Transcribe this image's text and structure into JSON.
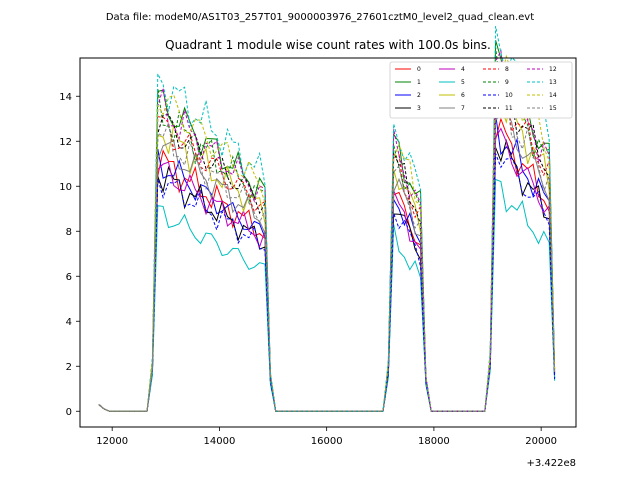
{
  "suptitle": "Data file: modeM0/AS1T03_257T01_9000003976_27601cztM0_level2_quad_clean.evt",
  "chart_data": {
    "type": "line",
    "title": "Quadrant 1 module wise count rates with 100.0s bins.",
    "xlabel": "",
    "ylabel": "",
    "x_offset_label": "+3.422e8",
    "xlim": [
      11400,
      20650
    ],
    "ylim": [
      -0.7,
      15.7
    ],
    "xticks": [
      12000,
      14000,
      16000,
      18000,
      20000
    ],
    "xtick_labels": [
      "12000",
      "14000",
      "16000",
      "18000",
      "20000"
    ],
    "yticks": [
      0,
      2,
      4,
      6,
      8,
      10,
      12,
      14
    ],
    "ytick_labels": [
      "0",
      "2",
      "4",
      "6",
      "8",
      "10",
      "12",
      "14"
    ],
    "legend_position": "top-right",
    "segments": [
      {
        "start": 11750,
        "end": 12650,
        "rate": 0.05
      },
      {
        "start": 12750,
        "end": 14950,
        "rate": 10.0
      },
      {
        "start": 15050,
        "end": 17050,
        "rate": 0.0
      },
      {
        "start": 17150,
        "end": 17850,
        "rate": 9.0
      },
      {
        "start": 17950,
        "end": 18950,
        "rate": 0.0
      },
      {
        "start": 19050,
        "end": 20250,
        "rate": 11.5
      }
    ],
    "series": [
      {
        "name": "0",
        "color": "#ff0000",
        "dash": "solid",
        "level": 0.91
      },
      {
        "name": "1",
        "color": "#008000",
        "dash": "solid",
        "level": 1.12
      },
      {
        "name": "2",
        "color": "#0000ff",
        "dash": "solid",
        "level": 0.9
      },
      {
        "name": "3",
        "color": "#000000",
        "dash": "solid",
        "level": 0.86
      },
      {
        "name": "4",
        "color": "#bf00bf",
        "dash": "solid",
        "level": 0.88
      },
      {
        "name": "5",
        "color": "#00bfbf",
        "dash": "solid",
        "level": 0.72
      },
      {
        "name": "6",
        "color": "#bfbf00",
        "dash": "solid",
        "level": 1.02
      },
      {
        "name": "7",
        "color": "#808080",
        "dash": "solid",
        "level": 0.97
      },
      {
        "name": "8",
        "color": "#ff0000",
        "dash": "dashed",
        "level": 1.04
      },
      {
        "name": "9",
        "color": "#008000",
        "dash": "dashed",
        "level": 1.08
      },
      {
        "name": "10",
        "color": "#0000ff",
        "dash": "dashed",
        "level": 0.84
      },
      {
        "name": "11",
        "color": "#000000",
        "dash": "dashed",
        "level": 1.06
      },
      {
        "name": "12",
        "color": "#bf00bf",
        "dash": "dashed",
        "level": 1.1
      },
      {
        "name": "13",
        "color": "#00bfbf",
        "dash": "dashed",
        "level": 1.2
      },
      {
        "name": "14",
        "color": "#bfbf00",
        "dash": "dashed",
        "level": 1.14
      },
      {
        "name": "15",
        "color": "#808080",
        "dash": "dashed",
        "level": 1.0
      }
    ]
  }
}
